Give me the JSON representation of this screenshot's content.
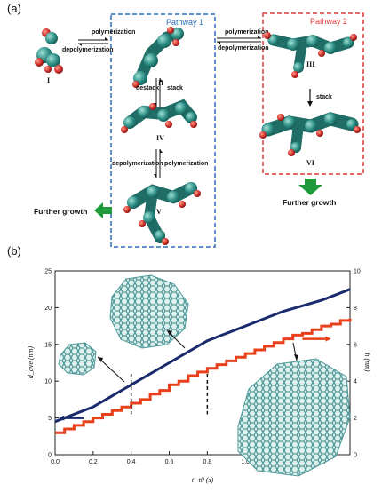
{
  "panel_a": {
    "label": "(a)",
    "pathway1": {
      "title": "Pathway 1",
      "color": "#2d6fb7"
    },
    "pathway2": {
      "title": "Pathway 2",
      "color": "#e23b3b"
    },
    "molecules": [
      "I",
      "II",
      "III",
      "IV",
      "V",
      "VI"
    ],
    "reactions": {
      "i_ii_top": "polymerization",
      "i_ii_bottom": "depolymerization",
      "ii_iii_top": "polymerization",
      "ii_iii_bottom": "depolymerization",
      "ii_iv_left": "destack",
      "ii_iv_right": "stack",
      "iv_v_left": "depolymerization",
      "iv_v_right": "polymerization",
      "iii_vi": "stack"
    },
    "further_growth_left": "Further growth",
    "further_growth_right": "Further growth",
    "arrow_color": "#1e9a3a"
  },
  "panel_b": {
    "label": "(b)"
  },
  "chart_data": {
    "type": "line",
    "xlabel": "t−t0 (s)",
    "ylabel_left": "d_ave (nm)",
    "ylabel_right": "h (nm)",
    "xlim": [
      0.0,
      1.55
    ],
    "ylim_left": [
      0,
      25
    ],
    "ylim_right": [
      0,
      10
    ],
    "x_ticks": [
      "0.0",
      "0.2",
      "0.4",
      "0.6",
      "0.8",
      "1.0",
      "1.2",
      "1.4"
    ],
    "y_ticks_left": [
      "0",
      "5",
      "10",
      "15",
      "20",
      "25"
    ],
    "y_ticks_right": [
      "0",
      "2",
      "4",
      "6",
      "8",
      "10"
    ],
    "markers_x": [
      0.4,
      0.8,
      1.2
    ],
    "series": [
      {
        "axis": "left",
        "color": "#1a2a6c",
        "points": [
          [
            0.0,
            4.5
          ],
          [
            0.2,
            6.5
          ],
          [
            0.4,
            9.5
          ],
          [
            0.6,
            12.5
          ],
          [
            0.8,
            15.5
          ],
          [
            1.0,
            17.5
          ],
          [
            1.2,
            19.5
          ],
          [
            1.4,
            21.0
          ],
          [
            1.55,
            22.5
          ]
        ]
      },
      {
        "axis": "right",
        "color": "#e8401a",
        "points": [
          [
            0.0,
            1.2
          ],
          [
            0.05,
            1.4
          ],
          [
            0.1,
            1.6
          ],
          [
            0.15,
            1.8
          ],
          [
            0.2,
            2.0
          ],
          [
            0.25,
            2.2
          ],
          [
            0.3,
            2.4
          ],
          [
            0.35,
            2.6
          ],
          [
            0.4,
            2.8
          ],
          [
            0.45,
            3.0
          ],
          [
            0.5,
            3.3
          ],
          [
            0.55,
            3.5
          ],
          [
            0.6,
            3.8
          ],
          [
            0.65,
            4.0
          ],
          [
            0.7,
            4.3
          ],
          [
            0.75,
            4.5
          ],
          [
            0.8,
            4.7
          ],
          [
            0.85,
            4.9
          ],
          [
            0.9,
            5.1
          ],
          [
            0.95,
            5.3
          ],
          [
            1.0,
            5.5
          ],
          [
            1.05,
            5.7
          ],
          [
            1.1,
            5.9
          ],
          [
            1.15,
            6.1
          ],
          [
            1.2,
            6.3
          ],
          [
            1.25,
            6.5
          ],
          [
            1.3,
            6.6
          ],
          [
            1.35,
            6.8
          ],
          [
            1.4,
            7.0
          ],
          [
            1.45,
            7.1
          ],
          [
            1.5,
            7.3
          ],
          [
            1.55,
            7.4
          ]
        ]
      }
    ]
  }
}
